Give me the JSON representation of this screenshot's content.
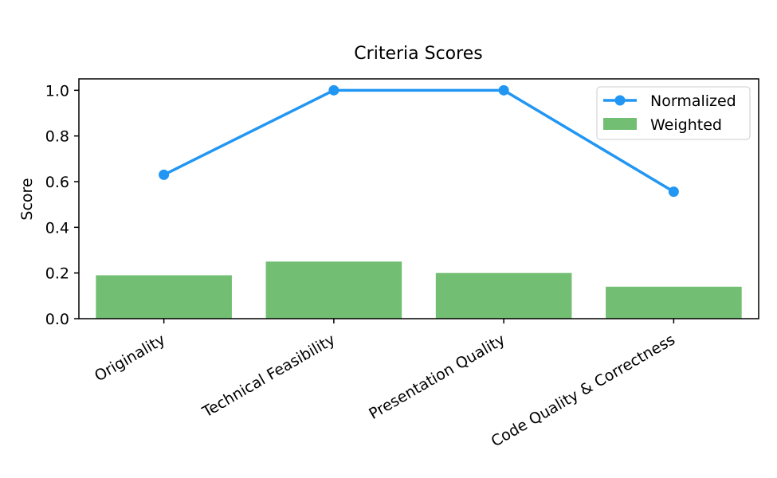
{
  "chart_data": {
    "type": "bar",
    "title": "Criteria Scores",
    "xlabel": "",
    "ylabel": "Score",
    "ylim": [
      0,
      1.05
    ],
    "yticks": [
      "0.0",
      "0.2",
      "0.4",
      "0.6",
      "0.8",
      "1.0"
    ],
    "categories": [
      "Originality",
      "Technical Feasibility",
      "Presentation Quality",
      "Code Quality & Correctness"
    ],
    "series": [
      {
        "name": "Weighted",
        "kind": "bar",
        "color": "#72bf73",
        "values": [
          0.19,
          0.25,
          0.2,
          0.14
        ]
      },
      {
        "name": "Normalized",
        "kind": "line",
        "color": "#2196f3",
        "values": [
          0.63,
          1.0,
          1.0,
          0.556
        ]
      }
    ],
    "legend": {
      "position": "top-right",
      "entries": [
        "Normalized",
        "Weighted"
      ]
    }
  }
}
